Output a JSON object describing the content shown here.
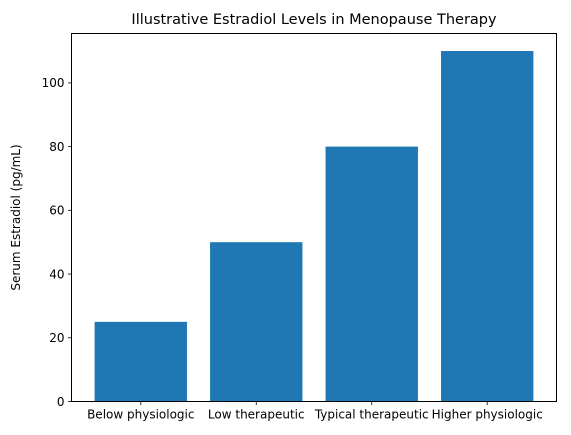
{
  "chart_data": {
    "type": "bar",
    "title": "Illustrative Estradiol Levels in Menopause Therapy",
    "xlabel": "",
    "ylabel": "Serum Estradiol (pg/mL)",
    "categories": [
      "Below physiologic",
      "Low therapeutic",
      "Typical therapeutic",
      "Higher physiologic"
    ],
    "values": [
      25,
      50,
      80,
      110
    ],
    "ylim": [
      0,
      115.5
    ],
    "yticks": [
      0,
      20,
      40,
      60,
      80,
      100
    ],
    "bar_color": "#1f77b4",
    "grid": false,
    "legend": "none"
  }
}
